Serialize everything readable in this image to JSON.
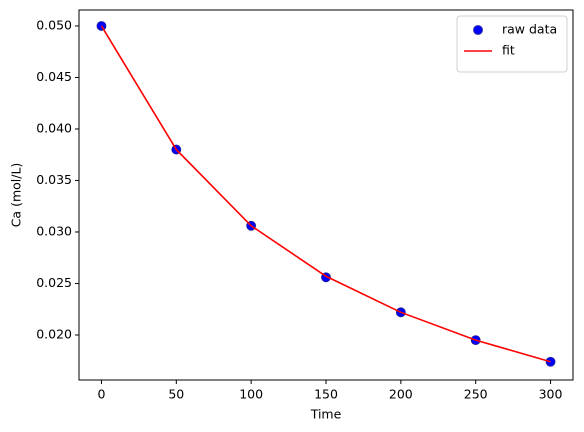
{
  "chart_data": {
    "type": "line",
    "x_label": "Time",
    "y_label": "Ca (mol/L)",
    "x": [
      0,
      50,
      100,
      150,
      200,
      250,
      300
    ],
    "series": [
      {
        "name": "raw data",
        "color": "#0000ff",
        "style": "markers",
        "values": [
          0.05,
          0.038,
          0.0306,
          0.0256,
          0.0222,
          0.0195,
          0.0174
        ]
      },
      {
        "name": "fit",
        "color": "#ff0000",
        "style": "line",
        "values": [
          0.05,
          0.038,
          0.0306,
          0.0257,
          0.0222,
          0.0195,
          0.0174
        ]
      }
    ],
    "xlim": [
      -15,
      315
    ],
    "xticks": [
      0,
      50,
      100,
      150,
      200,
      250,
      300
    ],
    "ylim": [
      0.01563,
      0.05155
    ],
    "yticks": [
      {
        "value": 0.02,
        "label": "0.020"
      },
      0.025,
      {
        "value": 0.03,
        "label": "0.030"
      },
      0.035,
      {
        "value": 0.04,
        "label": "0.040"
      },
      0.045,
      {
        "value": 0.05,
        "label": "0.050"
      }
    ],
    "grid": false,
    "legend": "upper right"
  }
}
